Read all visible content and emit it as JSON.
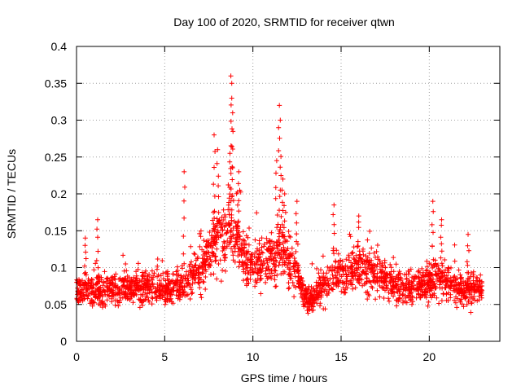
{
  "chart_data": {
    "type": "scatter",
    "title": "Day 100 of 2020, SRMTID for receiver qtwn",
    "xlabel": "GPS time / hours",
    "ylabel": "SRMTID / TECUs",
    "xlim": [
      0,
      24
    ],
    "ylim": [
      0,
      0.4
    ],
    "xticks": [
      0,
      5,
      10,
      15,
      20
    ],
    "yticks": [
      0,
      0.05,
      0.1,
      0.15,
      0.2,
      0.25,
      0.3,
      0.35,
      0.4
    ],
    "xtick_labels": [
      "0",
      "5",
      "10",
      "15",
      "20"
    ],
    "ytick_labels": [
      "0",
      "0.05",
      "0.1",
      "0.15",
      "0.2",
      "0.25",
      "0.3",
      "0.35",
      "0.4"
    ],
    "grid": true,
    "marker": "+",
    "color": "#ff0000",
    "x_data_range": [
      0,
      23
    ],
    "series": [
      {
        "name": "SRMTID",
        "baseline_profile_x": [
          0,
          2,
          4,
          5,
          6,
          7,
          7.5,
          8,
          8.5,
          9,
          9.5,
          10,
          11,
          11.5,
          12,
          12.5,
          13,
          13.5,
          14,
          15,
          16,
          17,
          18,
          19,
          20,
          20.5,
          21,
          22,
          23
        ],
        "baseline_profile_y": [
          0.07,
          0.07,
          0.075,
          0.07,
          0.08,
          0.09,
          0.12,
          0.14,
          0.15,
          0.14,
          0.12,
          0.1,
          0.11,
          0.12,
          0.11,
          0.09,
          0.06,
          0.06,
          0.08,
          0.09,
          0.1,
          0.09,
          0.08,
          0.07,
          0.08,
          0.09,
          0.08,
          0.07,
          0.07
        ],
        "notable_peaks": [
          {
            "x": 0.5,
            "y": 0.14
          },
          {
            "x": 1.2,
            "y": 0.165
          },
          {
            "x": 6.1,
            "y": 0.23
          },
          {
            "x": 7.8,
            "y": 0.28
          },
          {
            "x": 8.0,
            "y": 0.26
          },
          {
            "x": 8.75,
            "y": 0.36
          },
          {
            "x": 8.8,
            "y": 0.35
          },
          {
            "x": 8.85,
            "y": 0.31
          },
          {
            "x": 8.7,
            "y": 0.255
          },
          {
            "x": 9.2,
            "y": 0.23
          },
          {
            "x": 11.5,
            "y": 0.32
          },
          {
            "x": 11.55,
            "y": 0.3
          },
          {
            "x": 11.35,
            "y": 0.245
          },
          {
            "x": 11.7,
            "y": 0.22
          },
          {
            "x": 11.8,
            "y": 0.2
          },
          {
            "x": 12.5,
            "y": 0.19
          },
          {
            "x": 14.6,
            "y": 0.185
          },
          {
            "x": 16.0,
            "y": 0.17
          },
          {
            "x": 20.2,
            "y": 0.19
          },
          {
            "x": 20.7,
            "y": 0.165
          },
          {
            "x": 22.2,
            "y": 0.145
          }
        ]
      }
    ]
  }
}
